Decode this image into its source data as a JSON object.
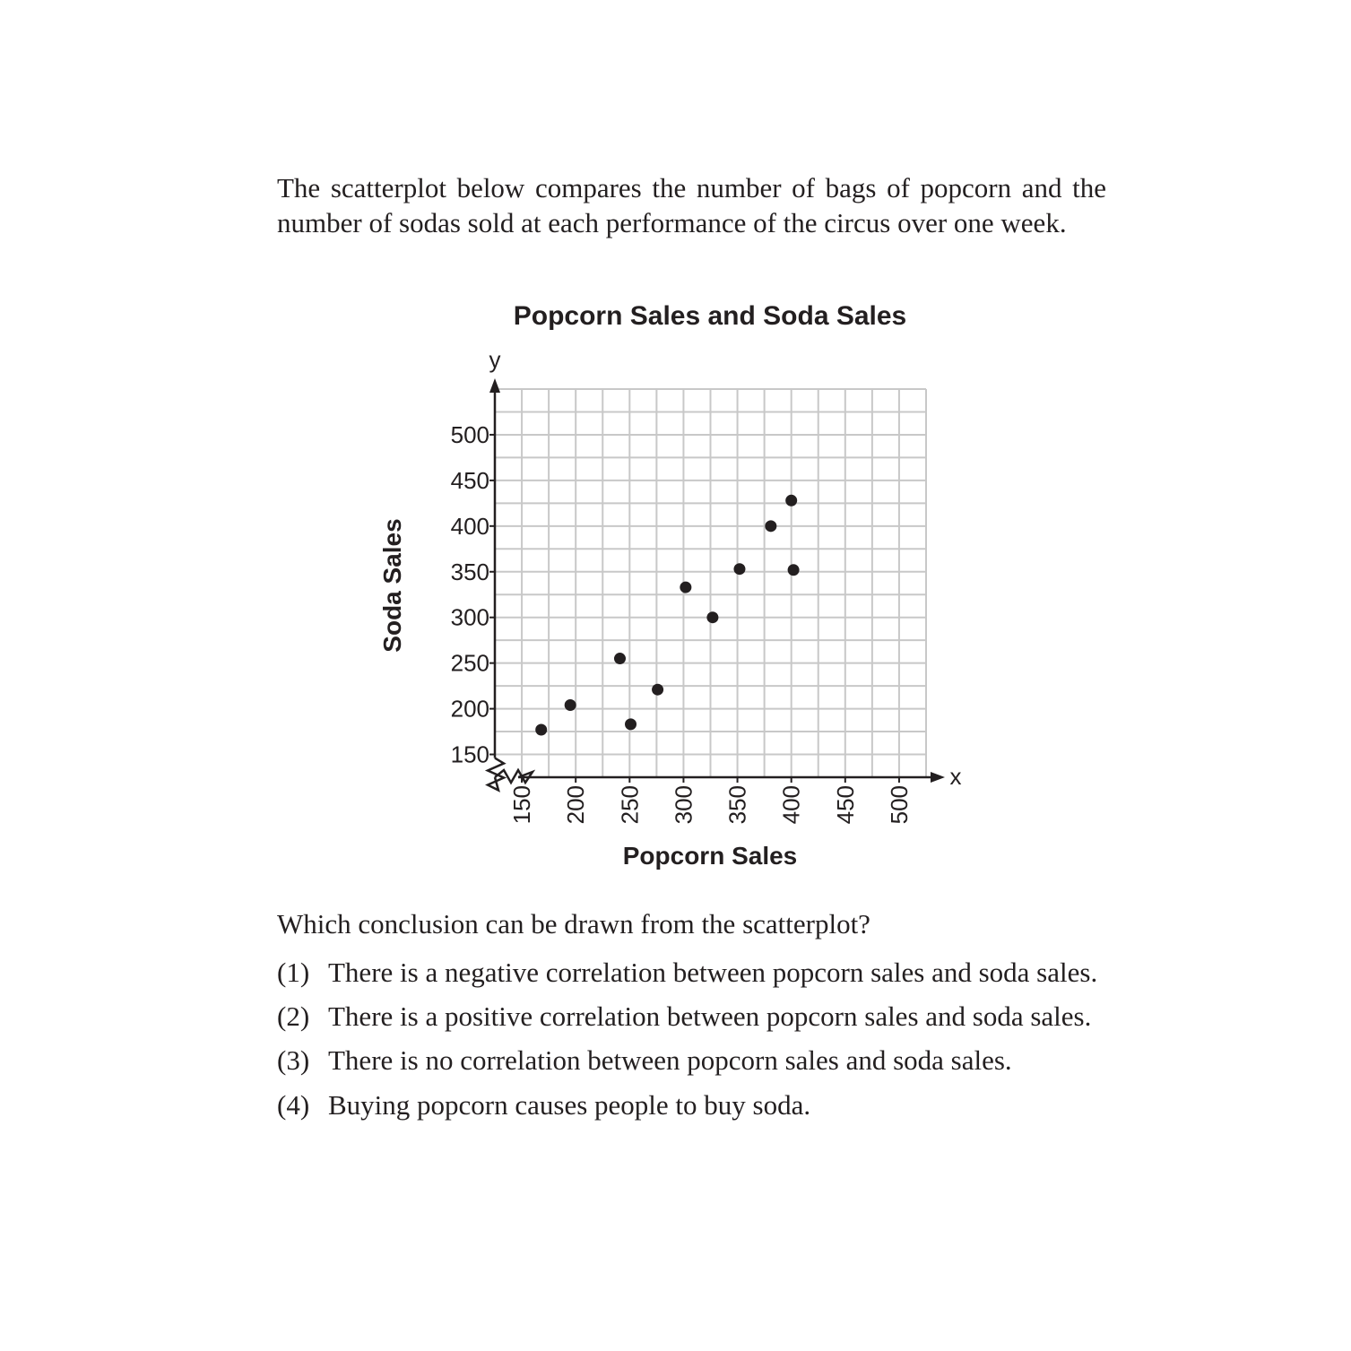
{
  "intro_text": "The scatterplot below compares the number of bags of popcorn and the number of sodas sold at each performance of the circus over one week.",
  "question_text": "Which conclusion can be drawn from the scatterplot?",
  "choices": [
    {
      "number": "(1)",
      "text": "There is a negative correlation between popcorn sales and soda sales."
    },
    {
      "number": "(2)",
      "text": "There is a positive correlation between popcorn sales and soda sales."
    },
    {
      "number": "(3)",
      "text": "There is no correlation between popcorn sales and soda sales."
    },
    {
      "number": "(4)",
      "text": "Buying popcorn causes people to buy soda."
    }
  ],
  "chart_data": {
    "type": "scatter",
    "title": "Popcorn Sales and Soda Sales",
    "xlabel": "Popcorn Sales",
    "ylabel": "Soda Sales",
    "x_axis_letter": "x",
    "y_axis_letter": "y",
    "xlim": [
      125,
      525
    ],
    "ylim": [
      125,
      550
    ],
    "x_ticks": [
      150,
      200,
      250,
      300,
      350,
      400,
      450,
      500
    ],
    "y_ticks": [
      150,
      200,
      250,
      300,
      350,
      400,
      450,
      500
    ],
    "x_tick_labels": [
      "150",
      "200",
      "250",
      "300",
      "350",
      "400",
      "450",
      "500"
    ],
    "y_tick_labels": [
      "150",
      "200",
      "250",
      "300",
      "350",
      "400",
      "450",
      "500"
    ],
    "axis_breaks": true,
    "grid": true,
    "colors": {
      "points": "#231f20",
      "grid": "#c8c8c8",
      "axis": "#231f20"
    },
    "points": [
      {
        "x": 168,
        "y": 177
      },
      {
        "x": 195,
        "y": 204
      },
      {
        "x": 241,
        "y": 255
      },
      {
        "x": 251,
        "y": 183
      },
      {
        "x": 276,
        "y": 221
      },
      {
        "x": 302,
        "y": 333
      },
      {
        "x": 327,
        "y": 300
      },
      {
        "x": 352,
        "y": 353
      },
      {
        "x": 381,
        "y": 400
      },
      {
        "x": 400,
        "y": 428
      },
      {
        "x": 402,
        "y": 352
      }
    ]
  }
}
